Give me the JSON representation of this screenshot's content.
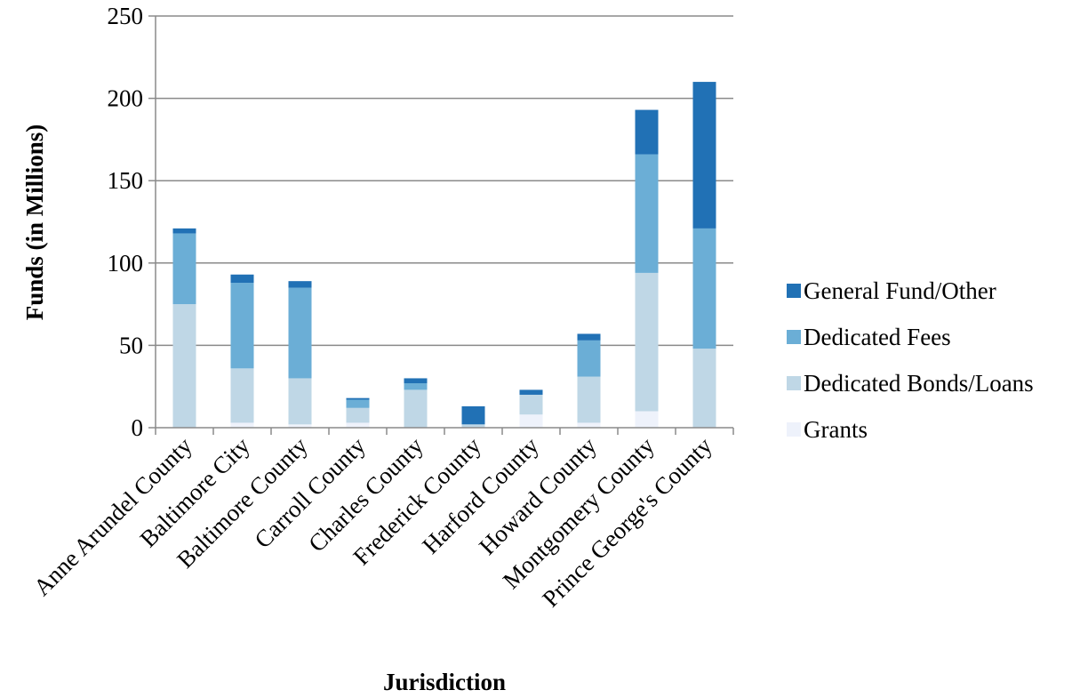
{
  "chart_data": {
    "type": "bar",
    "stacked": true,
    "title": "",
    "xlabel": "Jurisdiction",
    "ylabel": "Funds (in Millions)",
    "ylim": [
      0,
      250
    ],
    "yticks": [
      0,
      50,
      100,
      150,
      200,
      250
    ],
    "grid": true,
    "legend_position": "right",
    "categories": [
      "Anne Arundel County",
      "Baltimore City",
      "Baltimore County",
      "Carroll County",
      "Charles County",
      "Frederick County",
      "Harford County",
      "Howard County",
      "Montgomery County",
      "Prince George's County"
    ],
    "series": [
      {
        "name": "Grants",
        "color": "#eef2fb",
        "values": [
          0,
          3,
          2,
          3,
          0,
          0,
          8,
          3,
          10,
          0
        ]
      },
      {
        "name": "Dedicated Bonds/Loans",
        "color": "#bfd7e6",
        "values": [
          75,
          33,
          28,
          9,
          23,
          2,
          12,
          28,
          84,
          48
        ]
      },
      {
        "name": "Dedicated Fees",
        "color": "#6baed6",
        "values": [
          43,
          52,
          55,
          5,
          4,
          0,
          0,
          22,
          72,
          73
        ]
      },
      {
        "name": "General Fund/Other",
        "color": "#2171b5",
        "values": [
          3,
          5,
          4,
          1,
          3,
          11,
          3,
          4,
          27,
          89
        ]
      }
    ]
  }
}
